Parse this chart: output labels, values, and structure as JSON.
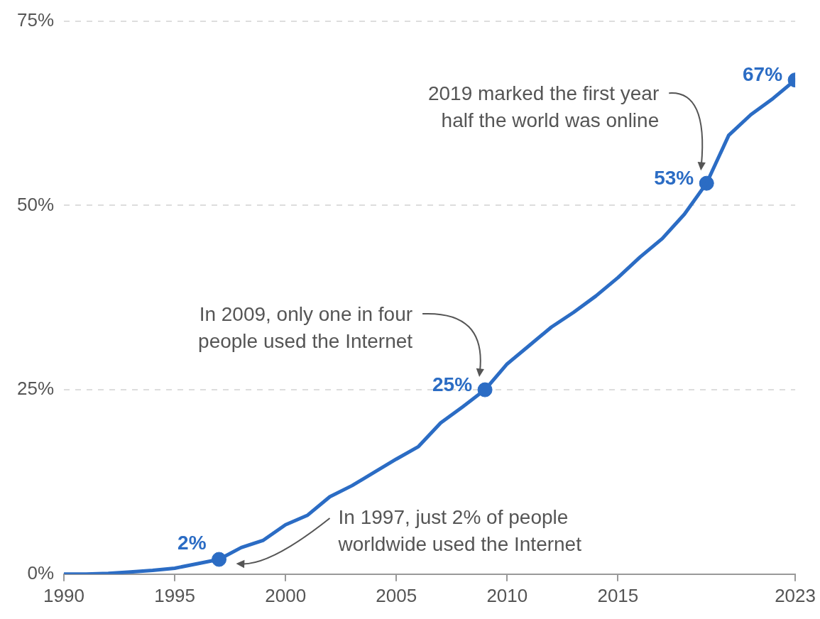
{
  "chart_data": {
    "type": "line",
    "x": [
      1990,
      1991,
      1992,
      1993,
      1994,
      1995,
      1996,
      1997,
      1998,
      1999,
      2000,
      2001,
      2002,
      2003,
      2004,
      2005,
      2006,
      2007,
      2008,
      2009,
      2010,
      2011,
      2012,
      2013,
      2014,
      2015,
      2016,
      2017,
      2018,
      2019,
      2020,
      2021,
      2022,
      2023
    ],
    "series": [
      {
        "color": "#2b6cc4",
        "values": [
          0,
          0,
          0.1,
          0.3,
          0.5,
          0.8,
          1.4,
          2,
          3.6,
          4.6,
          6.7,
          8,
          10.5,
          12,
          13.8,
          15.6,
          17.3,
          20.5,
          22.7,
          25,
          28.5,
          31,
          33.5,
          35.5,
          37.7,
          40.2,
          43,
          45.5,
          48.8,
          53,
          59.5,
          62.3,
          64.5,
          67
        ]
      },
      {
        "type": "scatter",
        "color": "#2b6cc4",
        "x": [
          1997,
          2009,
          2019,
          2023
        ],
        "values": [
          2,
          25,
          53,
          67
        ],
        "value_labels": [
          "2%",
          "25%",
          "53%",
          "67%"
        ]
      }
    ],
    "xlim": [
      1990,
      2023
    ],
    "xticks": [
      1990,
      1995,
      2000,
      2005,
      2010,
      2015,
      2023
    ],
    "ylim": [
      0,
      75
    ],
    "yticks": [
      {
        "value": 0,
        "label": "0%"
      },
      {
        "value": 25,
        "label": "25%"
      },
      {
        "value": 50,
        "label": "50%"
      },
      {
        "value": 75,
        "label": "75%"
      }
    ],
    "grid": "y",
    "legend": false,
    "line_style": "solid",
    "annotations": [
      "In 1997, just 2% of people\nworldwide used the Internet",
      "In 2009, only one in four\npeople used the Internet",
      "2019 marked the first year\nhalf the world was online"
    ]
  }
}
